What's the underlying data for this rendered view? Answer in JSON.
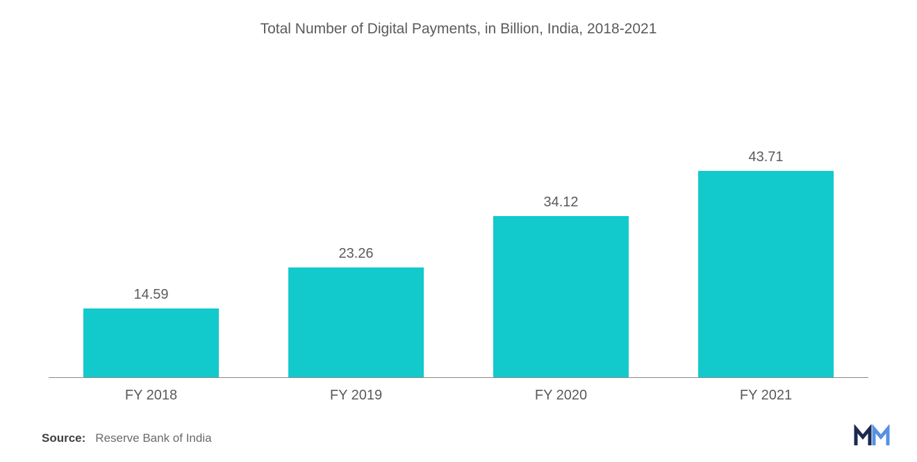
{
  "chart": {
    "type": "bar",
    "title": "Total Number of Digital Payments, in Billion, India, 2018-2021",
    "title_fontsize": 21,
    "title_color": "#5a5a5a",
    "categories": [
      "FY 2018",
      "FY 2019",
      "FY 2020",
      "FY 2021"
    ],
    "values": [
      14.59,
      23.26,
      34.12,
      43.71
    ],
    "value_labels": [
      "14.59",
      "23.26",
      "34.12",
      "43.71"
    ],
    "bar_color": "#12c9cc",
    "background_color": "#ffffff",
    "axis_color": "#888888",
    "label_fontsize": 20,
    "label_color": "#5a5a5a",
    "value_fontsize": 20,
    "value_color": "#5a5a5a",
    "y_max_scale": 60,
    "bar_width_pct": 75
  },
  "source": {
    "label": "Source:",
    "text": "Reserve Bank of India",
    "label_color": "#404040",
    "text_color": "#6a6a6a",
    "fontsize": 17
  },
  "logo": {
    "color1": "#1b2a4e",
    "color2": "#3a7de0"
  }
}
